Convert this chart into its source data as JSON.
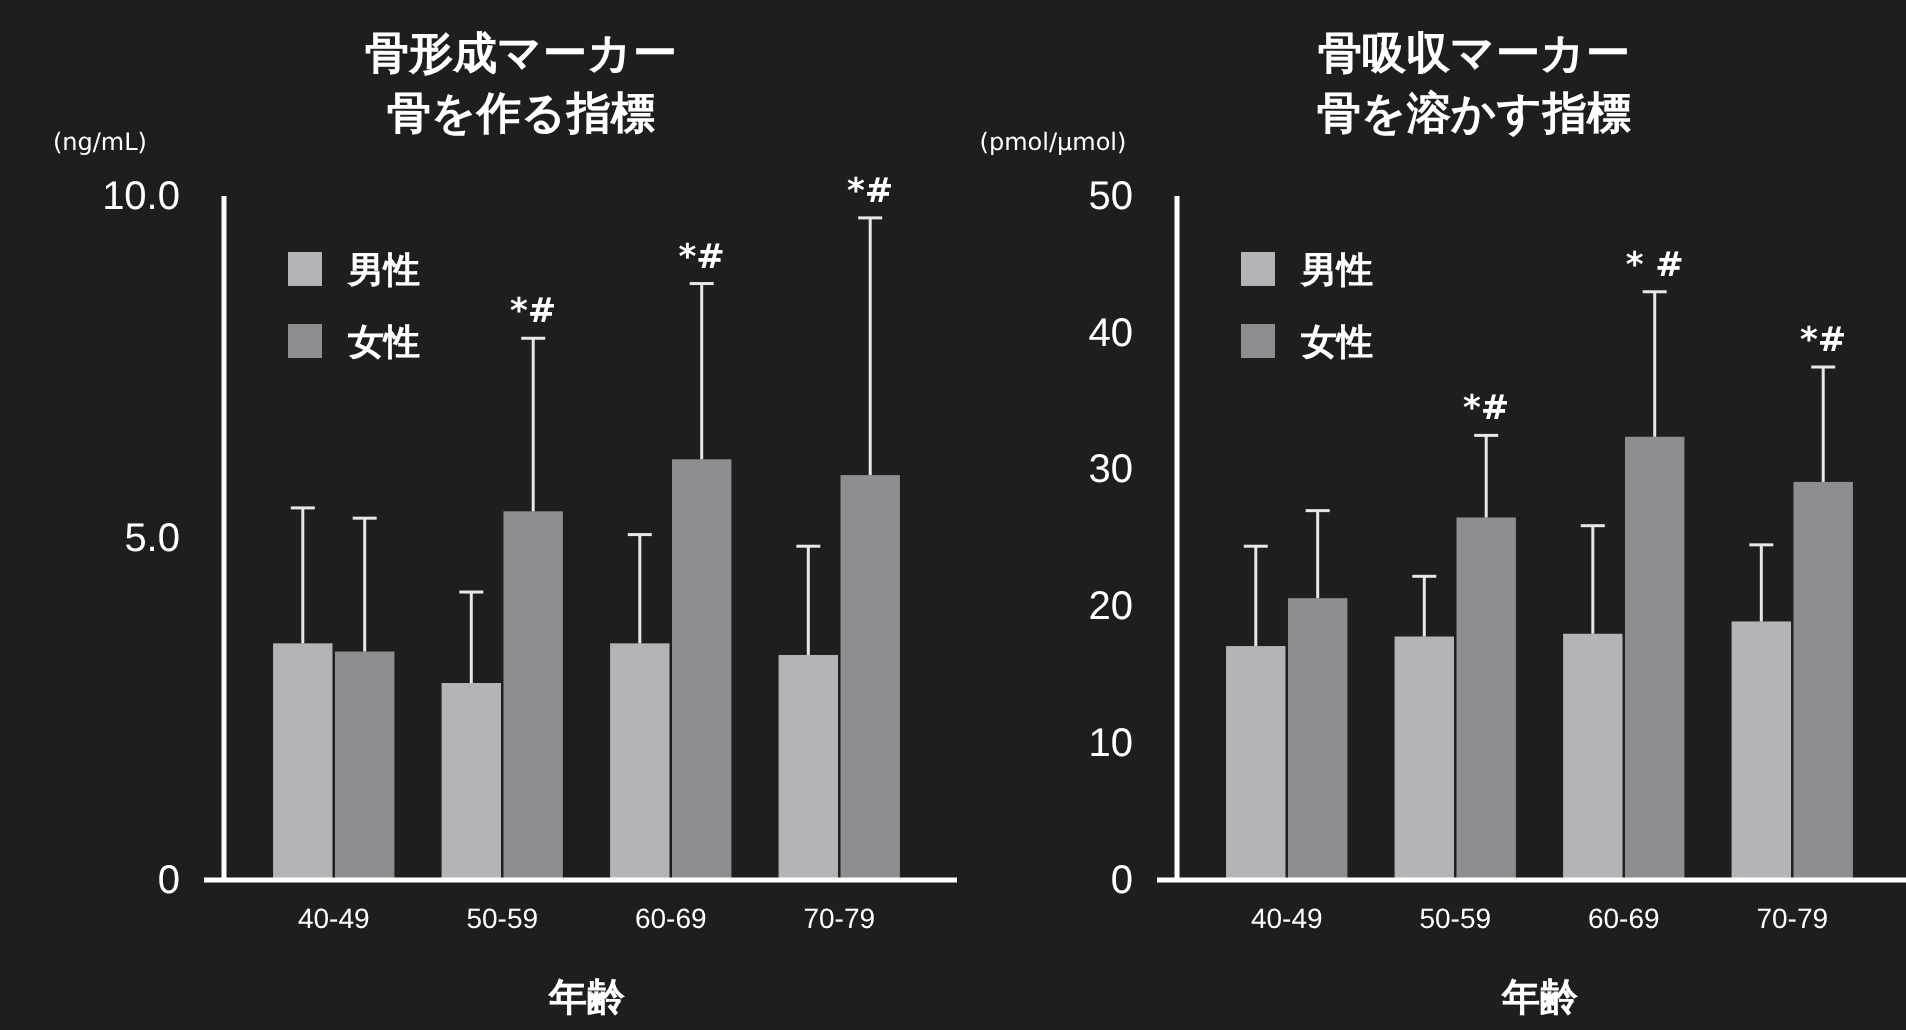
{
  "chart_data": [
    {
      "type": "bar",
      "title": "骨形成マーカー",
      "subtitle": "骨を作る指標",
      "ylabel": "(ng/mL)",
      "xlabel": "年齢",
      "categories": [
        "40-49",
        "50-59",
        "60-69",
        "70-79"
      ],
      "series": [
        {
          "name": "男性",
          "color": "#b4b4b8",
          "values": [
            3.46,
            2.88,
            3.46,
            3.29
          ],
          "errors": [
            [
              3.46,
              5.44
            ],
            [
              2.88,
              4.21
            ],
            [
              3.46,
              5.05
            ],
            [
              3.29,
              4.88
            ]
          ]
        },
        {
          "name": "女性",
          "color": "#8e8e92",
          "values": [
            3.34,
            5.39,
            6.15,
            5.92
          ],
          "errors": [
            [
              3.34,
              5.29
            ],
            [
              5.39,
              7.92
            ],
            [
              6.15,
              8.72
            ],
            [
              5.92,
              9.68
            ]
          ]
        }
      ],
      "ylim": [
        0,
        10
      ],
      "yticks": [
        0,
        {
          "value": 5,
          "label": "5.0"
        },
        {
          "value": 10,
          "label": "10.0"
        }
      ],
      "legend": "top left",
      "grid": false,
      "annotations": [
        "*#",
        "*#",
        "*#"
      ]
    },
    {
      "type": "bar",
      "title": "骨吸収マーカー",
      "subtitle": "骨を溶かす指標",
      "ylabel": "(pmol/μmol)",
      "xlabel": "年齢",
      "categories": [
        "40-49",
        "50-59",
        "60-69",
        "70-79"
      ],
      "series": [
        {
          "name": "男性",
          "color": "#b4b4b8",
          "values": [
            17.1,
            17.8,
            18.0,
            18.9
          ],
          "errors": [
            [
              17.1,
              24.4
            ],
            [
              17.8,
              22.2
            ],
            [
              18.0,
              25.9
            ],
            [
              18.9,
              24.5
            ]
          ]
        },
        {
          "name": "女性",
          "color": "#8e8e92",
          "values": [
            20.6,
            26.5,
            32.4,
            29.1
          ],
          "errors": [
            [
              20.6,
              27.0
            ],
            [
              26.5,
              32.5
            ],
            [
              32.4,
              43.0
            ],
            [
              29.1,
              37.5
            ]
          ]
        }
      ],
      "ylim": [
        0,
        50
      ],
      "yticks": [
        0,
        10,
        20,
        30,
        40,
        50
      ],
      "legend": "top left",
      "grid": false,
      "annotations": [
        "*#",
        "* #",
        "*#"
      ]
    }
  ]
}
